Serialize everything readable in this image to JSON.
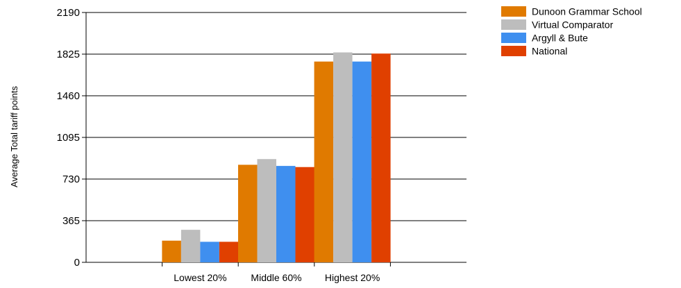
{
  "chart_data": {
    "type": "bar",
    "title": "",
    "xlabel": "",
    "ylabel": "Average Total tariff points",
    "ylim": [
      0,
      2190
    ],
    "yticks": [
      0,
      365,
      730,
      1095,
      1460,
      1825,
      2190
    ],
    "grid": "horizontal",
    "legend_position": "top-right",
    "categories": [
      "Lowest 20%",
      "Middle 60%",
      "Highest 20%"
    ],
    "series": [
      {
        "name": "Dunoon Grammar School",
        "color": "#E07A00",
        "values": [
          190,
          855,
          1760
        ]
      },
      {
        "name": "Virtual Comparator",
        "color": "#BDBDBD",
        "values": [
          285,
          905,
          1840
        ]
      },
      {
        "name": "Argyll & Bute",
        "color": "#3F8FEF",
        "values": [
          180,
          845,
          1760
        ]
      },
      {
        "name": "National",
        "color": "#E04000",
        "values": [
          180,
          835,
          1830
        ]
      }
    ]
  }
}
